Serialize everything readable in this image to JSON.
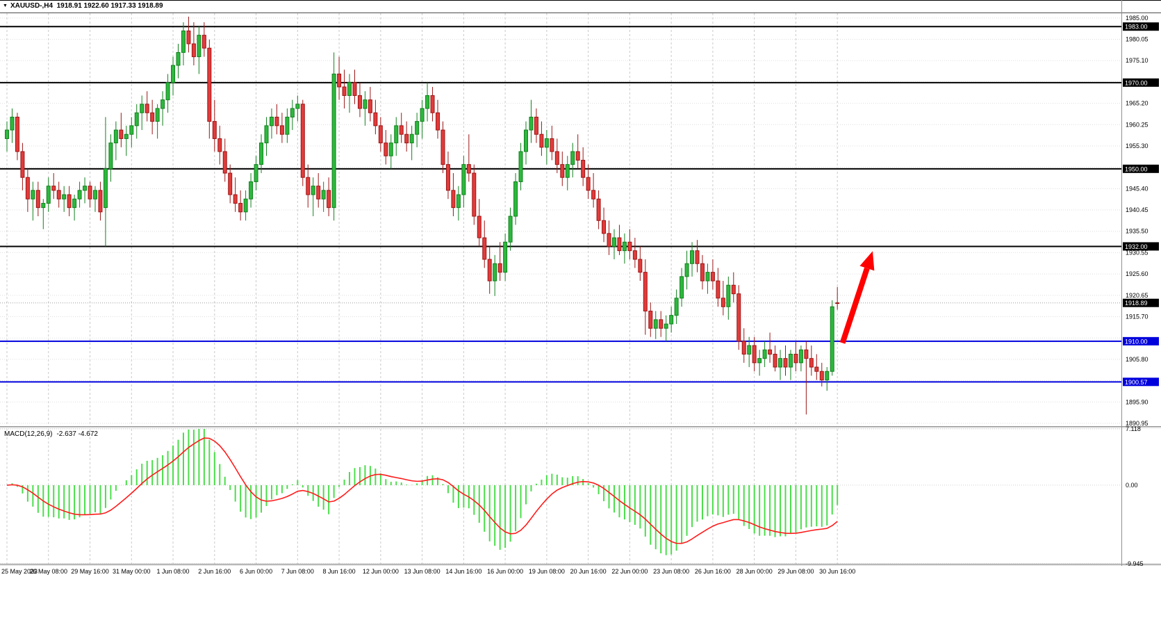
{
  "window": {
    "collapse_icon": "▼"
  },
  "title_bar": {
    "symbol": "XAUUSD-,H4",
    "ohlc": "1918.91 1922.60 1917.33 1918.89"
  },
  "colors": {
    "up_fill": "#2db83d",
    "up_border": "#12801e",
    "down_fill": "#e23b3b",
    "down_border": "#9c1616",
    "macd_bar": "#4ade4a",
    "macd_signal": "#ff1a1a",
    "level_black": "#000000",
    "level_blue": "#0000dd",
    "current_line": "#9a9a9a",
    "arrow": "#ff0000",
    "grid_v": "#c9c9c9",
    "grid_h": "#dedede",
    "badge_text": "#ffffff",
    "axis_text": "#000000"
  },
  "price_axis": {
    "grid_anchor": 1890.95,
    "grid_step": 4.95,
    "ticks": [
      {
        "label": "1985.00",
        "value": 1985.0
      },
      {
        "label": "1980.05",
        "value": 1980.05
      },
      {
        "label": "1975.10",
        "value": 1975.1
      },
      {
        "label": "1965.20",
        "value": 1965.2
      },
      {
        "label": "1960.25",
        "value": 1960.25
      },
      {
        "label": "1955.30",
        "value": 1955.3
      },
      {
        "label": "1945.40",
        "value": 1945.4
      },
      {
        "label": "1940.45",
        "value": 1940.45
      },
      {
        "label": "1935.50",
        "value": 1935.5
      },
      {
        "label": "1930.55",
        "value": 1930.55
      },
      {
        "label": "1925.60",
        "value": 1925.6
      },
      {
        "label": "1920.65",
        "value": 1920.65
      },
      {
        "label": "1915.70",
        "value": 1915.7
      },
      {
        "label": "1905.80",
        "value": 1905.8
      },
      {
        "label": "1895.90",
        "value": 1895.9
      },
      {
        "label": "1890.95",
        "value": 1890.95
      }
    ],
    "levels": [
      {
        "label": "1983.00",
        "value": 1983.0,
        "color": "black"
      },
      {
        "label": "1970.00",
        "value": 1970.0,
        "color": "black"
      },
      {
        "label": "1950.00",
        "value": 1950.0,
        "color": "black"
      },
      {
        "label": "1932.00",
        "value": 1932.0,
        "color": "black"
      },
      {
        "label": "1910.00",
        "value": 1910.0,
        "color": "blue"
      },
      {
        "label": "1900.57",
        "value": 1900.57,
        "color": "blue"
      }
    ],
    "current": {
      "label": "1918.89",
      "value": 1918.89
    }
  },
  "time_axis": {
    "labels": [
      {
        "text": "25 May 2023",
        "bar": 0
      },
      {
        "text": "26 May 08:00",
        "bar": 8
      },
      {
        "text": "29 May 16:00",
        "bar": 16
      },
      {
        "text": "31 May 00:00",
        "bar": 24
      },
      {
        "text": "1 Jun 08:00",
        "bar": 32
      },
      {
        "text": "2 Jun 16:00",
        "bar": 40
      },
      {
        "text": "6 Jun 00:00",
        "bar": 48
      },
      {
        "text": "7 Jun 08:00",
        "bar": 56
      },
      {
        "text": "8 Jun 16:00",
        "bar": 64
      },
      {
        "text": "12 Jun 00:00",
        "bar": 72
      },
      {
        "text": "13 Jun 08:00",
        "bar": 80
      },
      {
        "text": "14 Jun 16:00",
        "bar": 88
      },
      {
        "text": "16 Jun 00:00",
        "bar": 96
      },
      {
        "text": "19 Jun 08:00",
        "bar": 104
      },
      {
        "text": "20 Jun 16:00",
        "bar": 112
      },
      {
        "text": "22 Jun 00:00",
        "bar": 120
      },
      {
        "text": "23 Jun 08:00",
        "bar": 128
      },
      {
        "text": "26 Jun 16:00",
        "bar": 136
      },
      {
        "text": "28 Jun 00:00",
        "bar": 144
      },
      {
        "text": "29 Jun 08:00",
        "bar": 152
      },
      {
        "text": "30 Jun 16:00",
        "bar": 160
      }
    ]
  },
  "chart_data": {
    "type": "candlestick",
    "symbol": "XAUUSD-",
    "period": "H4",
    "current_ohlc": {
      "open": 1918.91,
      "high": 1922.6,
      "low": 1917.33,
      "close": 1918.89
    },
    "visible_price_range": {
      "top": 1986.1,
      "bottom": 1890.3
    },
    "candles": [
      [
        1957,
        1961,
        1954,
        1959
      ],
      [
        1959,
        1964,
        1956,
        1962
      ],
      [
        1962,
        1963,
        1952,
        1954
      ],
      [
        1954,
        1956,
        1945,
        1948
      ],
      [
        1948,
        1950,
        1940,
        1943
      ],
      [
        1943,
        1947,
        1938,
        1945
      ],
      [
        1945,
        1947,
        1939,
        1941
      ],
      [
        1941,
        1943,
        1936,
        1942
      ],
      [
        1942,
        1948,
        1940,
        1946
      ],
      [
        1946,
        1949,
        1943,
        1945
      ],
      [
        1945,
        1947,
        1941,
        1943
      ],
      [
        1943,
        1946,
        1940,
        1944
      ],
      [
        1944,
        1946,
        1939,
        1941
      ],
      [
        1941,
        1944,
        1938,
        1943
      ],
      [
        1943,
        1947,
        1941,
        1945
      ],
      [
        1945,
        1948,
        1942,
        1946
      ],
      [
        1946,
        1947,
        1941,
        1943
      ],
      [
        1943,
        1946,
        1940,
        1945
      ],
      [
        1945,
        1947,
        1938,
        1940
      ],
      [
        1941,
        1962,
        1932,
        1950
      ],
      [
        1950,
        1958,
        1947,
        1956
      ],
      [
        1956,
        1961,
        1952,
        1959
      ],
      [
        1959,
        1963,
        1955,
        1957
      ],
      [
        1957,
        1960,
        1953,
        1958
      ],
      [
        1958,
        1962,
        1955,
        1960
      ],
      [
        1960,
        1965,
        1957,
        1963
      ],
      [
        1963,
        1967,
        1959,
        1965
      ],
      [
        1965,
        1968,
        1961,
        1963
      ],
      [
        1963,
        1966,
        1958,
        1961
      ],
      [
        1961,
        1965,
        1957,
        1964
      ],
      [
        1964,
        1968,
        1960,
        1966
      ],
      [
        1966,
        1972,
        1963,
        1970
      ],
      [
        1970,
        1976,
        1967,
        1974
      ],
      [
        1974,
        1979,
        1971,
        1977
      ],
      [
        1977,
        1984,
        1974,
        1982
      ],
      [
        1982,
        1985.3,
        1977,
        1979
      ],
      [
        1979,
        1984,
        1974,
        1976
      ],
      [
        1976,
        1983,
        1972,
        1981
      ],
      [
        1981,
        1984,
        1976,
        1978
      ],
      [
        1978,
        1980,
        1957,
        1961
      ],
      [
        1961,
        1966,
        1954,
        1957
      ],
      [
        1957,
        1960,
        1951,
        1954
      ],
      [
        1954,
        1957,
        1947,
        1949
      ],
      [
        1949,
        1951,
        1942,
        1944
      ],
      [
        1944,
        1948,
        1940,
        1942
      ],
      [
        1942,
        1945,
        1938,
        1940
      ],
      [
        1940,
        1945,
        1938,
        1943
      ],
      [
        1943,
        1949,
        1941,
        1947
      ],
      [
        1947,
        1953,
        1945,
        1951
      ],
      [
        1951,
        1958,
        1949,
        1956
      ],
      [
        1956,
        1962,
        1953,
        1960
      ],
      [
        1960,
        1964,
        1957,
        1962
      ],
      [
        1962,
        1965,
        1958,
        1960
      ],
      [
        1960,
        1963,
        1956,
        1958
      ],
      [
        1958,
        1964,
        1956,
        1962
      ],
      [
        1962,
        1966,
        1959,
        1964
      ],
      [
        1964,
        1967,
        1961,
        1965
      ],
      [
        1965,
        1966,
        1946,
        1948
      ],
      [
        1948,
        1951,
        1941,
        1944
      ],
      [
        1944,
        1948,
        1939,
        1946
      ],
      [
        1946,
        1949,
        1941,
        1943
      ],
      [
        1943,
        1947,
        1940,
        1945
      ],
      [
        1945,
        1948,
        1939,
        1941
      ],
      [
        1941,
        1977,
        1938,
        1972
      ],
      [
        1972,
        1976,
        1966,
        1969
      ],
      [
        1969,
        1973,
        1964,
        1967
      ],
      [
        1967,
        1972,
        1963,
        1970
      ],
      [
        1970,
        1973,
        1965,
        1967
      ],
      [
        1967,
        1970,
        1962,
        1964
      ],
      [
        1964,
        1968,
        1960,
        1966
      ],
      [
        1966,
        1969,
        1961,
        1963
      ],
      [
        1963,
        1966,
        1958,
        1960
      ],
      [
        1960,
        1962,
        1954,
        1956
      ],
      [
        1956,
        1959,
        1951,
        1953
      ],
      [
        1953,
        1958,
        1950,
        1956
      ],
      [
        1956,
        1962,
        1953,
        1960
      ],
      [
        1960,
        1963,
        1956,
        1958
      ],
      [
        1958,
        1961,
        1954,
        1956
      ],
      [
        1956,
        1960,
        1952,
        1958
      ],
      [
        1958,
        1963,
        1955,
        1961
      ],
      [
        1961,
        1966,
        1957,
        1964
      ],
      [
        1964,
        1970,
        1961,
        1967
      ],
      [
        1967,
        1969,
        1961,
        1963
      ],
      [
        1963,
        1966,
        1957,
        1959
      ],
      [
        1959,
        1961,
        1949,
        1951
      ],
      [
        1951,
        1954,
        1943,
        1945
      ],
      [
        1945,
        1949,
        1939,
        1941
      ],
      [
        1941,
        1946,
        1938,
        1944
      ],
      [
        1944,
        1953,
        1941,
        1951
      ],
      [
        1951,
        1958,
        1947,
        1949
      ],
      [
        1949,
        1951,
        1937,
        1939
      ],
      [
        1939,
        1943,
        1932,
        1934
      ],
      [
        1934,
        1938,
        1927,
        1929
      ],
      [
        1929,
        1932,
        1921,
        1924
      ],
      [
        1924,
        1930,
        1920.5,
        1928
      ],
      [
        1928,
        1933,
        1924,
        1926
      ],
      [
        1926,
        1935,
        1924,
        1933
      ],
      [
        1933,
        1941,
        1931,
        1939
      ],
      [
        1939,
        1949,
        1937,
        1947
      ],
      [
        1947,
        1956,
        1945,
        1954
      ],
      [
        1954,
        1961,
        1951,
        1959
      ],
      [
        1959,
        1966,
        1956,
        1962
      ],
      [
        1962,
        1964,
        1956,
        1958
      ],
      [
        1958,
        1961,
        1953,
        1955
      ],
      [
        1955,
        1959,
        1951,
        1957
      ],
      [
        1957,
        1960,
        1952,
        1954
      ],
      [
        1954,
        1957,
        1949,
        1951
      ],
      [
        1951,
        1954,
        1946,
        1948
      ],
      [
        1948,
        1953,
        1945,
        1951
      ],
      [
        1951,
        1956,
        1948,
        1954
      ],
      [
        1954,
        1958,
        1950,
        1952
      ],
      [
        1952,
        1955,
        1946,
        1948
      ],
      [
        1948,
        1951,
        1943,
        1945
      ],
      [
        1945,
        1949,
        1941,
        1943
      ],
      [
        1943,
        1945,
        1936,
        1938
      ],
      [
        1938,
        1941,
        1933,
        1935
      ],
      [
        1935,
        1938,
        1930,
        1932
      ],
      [
        1932,
        1936,
        1929,
        1934
      ],
      [
        1934,
        1937,
        1930,
        1931
      ],
      [
        1931,
        1935,
        1928,
        1933
      ],
      [
        1933,
        1936,
        1929,
        1931
      ],
      [
        1931,
        1934,
        1927,
        1929
      ],
      [
        1929,
        1932,
        1924,
        1926
      ],
      [
        1926,
        1929,
        1911.5,
        1917
      ],
      [
        1917,
        1919,
        1911,
        1913
      ],
      [
        1913,
        1917,
        1910.5,
        1915
      ],
      [
        1915,
        1917,
        1911,
        1913
      ],
      [
        1913,
        1916,
        1910,
        1914
      ],
      [
        1914,
        1918,
        1912,
        1916
      ],
      [
        1916,
        1922,
        1914,
        1920
      ],
      [
        1920,
        1927,
        1918,
        1925
      ],
      [
        1925,
        1931,
        1922,
        1928
      ],
      [
        1928,
        1933,
        1925,
        1931
      ],
      [
        1931,
        1933.5,
        1926,
        1928
      ],
      [
        1928,
        1930,
        1922,
        1924
      ],
      [
        1924,
        1928,
        1921,
        1926
      ],
      [
        1926,
        1929,
        1922,
        1924
      ],
      [
        1924,
        1927,
        1918,
        1920
      ],
      [
        1920,
        1924,
        1916,
        1918
      ],
      [
        1918,
        1925,
        1915,
        1923
      ],
      [
        1923,
        1926,
        1919,
        1921
      ],
      [
        1921,
        1923,
        1908,
        1910
      ],
      [
        1910,
        1913,
        1905,
        1907
      ],
      [
        1907,
        1911,
        1904,
        1909
      ],
      [
        1909,
        1911,
        1903,
        1905
      ],
      [
        1905,
        1908,
        1902,
        1906
      ],
      [
        1906,
        1910,
        1904,
        1908
      ],
      [
        1908,
        1912,
        1905,
        1907
      ],
      [
        1907,
        1909,
        1903,
        1904
      ],
      [
        1904,
        1908,
        1901,
        1906
      ],
      [
        1906,
        1909,
        1902,
        1904
      ],
      [
        1904,
        1908,
        1901,
        1907
      ],
      [
        1907,
        1910,
        1903,
        1905
      ],
      [
        1905,
        1909,
        1903,
        1908
      ],
      [
        1908,
        1910,
        1893,
        1906
      ],
      [
        1906,
        1909,
        1902,
        1904
      ],
      [
        1904,
        1907,
        1901,
        1903
      ],
      [
        1903,
        1905,
        1899.5,
        1901
      ],
      [
        1901,
        1904,
        1898.5,
        1903
      ],
      [
        1903,
        1919.5,
        1902,
        1918
      ],
      [
        1918.91,
        1922.6,
        1917.33,
        1918.89
      ]
    ],
    "indicator": {
      "name": "MACD",
      "label": "MACD(12,26,9)",
      "values_text": "-2.637 -4.672",
      "main_value": -2.637,
      "signal_value": -4.672,
      "params": [
        12,
        26,
        9
      ],
      "range": {
        "top": 7.118,
        "bottom": -9.945
      },
      "axis_labels": [
        {
          "label": "7.118",
          "value": 7.118
        },
        {
          "label": "0.00",
          "value": 0
        },
        {
          "label": "-9.945",
          "value": -9.945
        }
      ]
    },
    "annotations": [
      {
        "type": "arrow",
        "color": "#ff0000",
        "from": {
          "bar": 161.0,
          "price": 1909.6
        },
        "to": {
          "bar": 166.8,
          "price": 1930.9
        }
      }
    ]
  }
}
